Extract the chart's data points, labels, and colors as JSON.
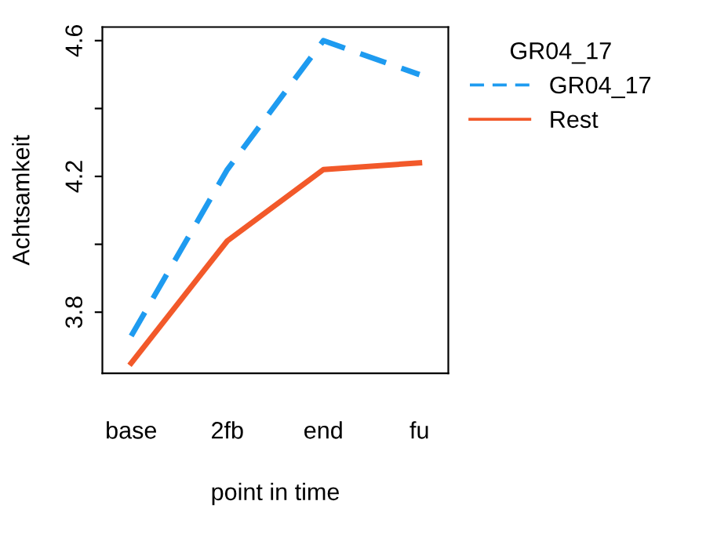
{
  "chart_data": {
    "type": "line",
    "xlabel": "point in time",
    "ylabel": "Achtsamkeit",
    "legend_title": "GR04_17",
    "categories": [
      "base",
      "2fb",
      "end",
      "fu"
    ],
    "series": [
      {
        "name": "GR04_17",
        "color": "#1e9bf0",
        "line_style": "dashed",
        "values": [
          3.73,
          4.22,
          4.6,
          4.5
        ]
      },
      {
        "name": "Rest",
        "color": "#f2592a",
        "line_style": "solid",
        "values": [
          3.65,
          4.01,
          4.22,
          4.24
        ]
      }
    ],
    "ylim": [
      3.62,
      4.64
    ],
    "yticks": [
      3.8,
      {
        "value": 4.0,
        "label": null
      },
      4.2,
      {
        "value": 4.4,
        "label": null
      },
      4.6
    ],
    "grid": false,
    "legend": "right"
  }
}
